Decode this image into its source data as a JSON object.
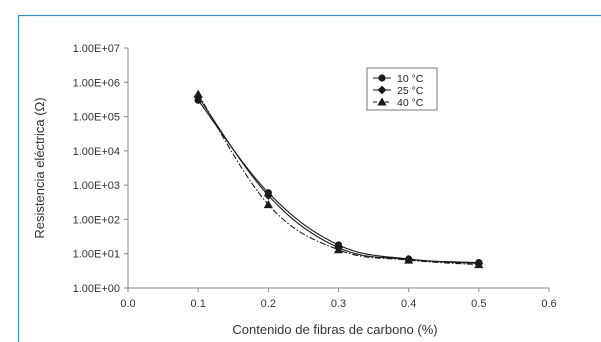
{
  "chart_data": {
    "type": "line",
    "title": "",
    "xlabel": "Contenido de fibras de carbono (%)",
    "ylabel": "Resistencia eléctrica (Ω)",
    "xlim": [
      0.0,
      0.6
    ],
    "ylim": [
      1,
      10000000
    ],
    "yscale": "log",
    "grid": false,
    "legend_position": "top-right",
    "x_ticks": [
      "0.0",
      "0.1",
      "0.2",
      "0.3",
      "0.4",
      "0.5",
      "0.6"
    ],
    "y_ticks": [
      "1.00E+07",
      "1.00E+06",
      "1.00E+05",
      "1.00E+04",
      "1.00E+03",
      "1.00E+02",
      "1.00E+01",
      "1.00E+00"
    ],
    "x": [
      0.1,
      0.2,
      0.3,
      0.4,
      0.5
    ],
    "series": [
      {
        "name": "10 °C",
        "marker": "circle",
        "line_style": "solid",
        "values": [
          300000,
          600,
          18,
          7,
          5.5
        ]
      },
      {
        "name": "25 °C",
        "marker": "diamond",
        "line_style": "solid",
        "values": [
          380000,
          500,
          15,
          6.8,
          5.2
        ]
      },
      {
        "name": "40 °C",
        "marker": "triangle",
        "line_style": "dashed",
        "values": [
          450000,
          270,
          13,
          6.5,
          4.8
        ]
      }
    ],
    "colors": {
      "line": "#1a1a1a",
      "axis": "#888888",
      "frame_accent": "#3a8fc8"
    }
  }
}
